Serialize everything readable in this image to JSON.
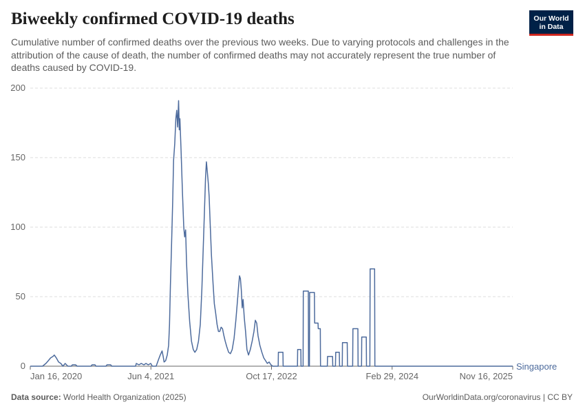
{
  "header": {
    "title": "Biweekly confirmed COVID-19 deaths",
    "subtitle": "Cumulative number of confirmed deaths over the previous two weeks. Due to varying protocols and challenges in the attribution of the cause of death, the number of confirmed deaths may not accurately represent the true number of deaths caused by COVID-19."
  },
  "logo": {
    "line1": "Our World",
    "line2": "in Data"
  },
  "footer": {
    "source_label": "Data source:",
    "source_text": "World Health Organization (2025)",
    "credit": "OurWorldinData.org/coronavirus | CC BY"
  },
  "colors": {
    "series": "#4c6a9c",
    "grid": "#dddddd",
    "axis": "#666666",
    "brand": "#002147",
    "brand_accent": "#ce261e"
  },
  "chart_data": {
    "type": "line",
    "title": "Biweekly confirmed COVID-19 deaths",
    "xlabel": "",
    "ylabel": "",
    "ylim": [
      0,
      200
    ],
    "y_ticks": [
      0,
      50,
      100,
      150,
      200
    ],
    "x_ticks": [
      "Jan 16, 2020",
      "Jun 4, 2021",
      "Oct 17, 2022",
      "Feb 29, 2024",
      "Nov 16, 2025"
    ],
    "x_range": [
      "2020-01-16",
      "2025-11-16"
    ],
    "grid": true,
    "series": [
      {
        "name": "Singapore",
        "points": [
          [
            "2020-01-16",
            0
          ],
          [
            "2020-03-10",
            0
          ],
          [
            "2020-03-25",
            2
          ],
          [
            "2020-04-05",
            4
          ],
          [
            "2020-04-15",
            6
          ],
          [
            "2020-04-25",
            7
          ],
          [
            "2020-05-01",
            8
          ],
          [
            "2020-05-10",
            6
          ],
          [
            "2020-05-20",
            3
          ],
          [
            "2020-05-30",
            2
          ],
          [
            "2020-06-08",
            0
          ],
          [
            "2020-06-18",
            2
          ],
          [
            "2020-06-30",
            0
          ],
          [
            "2020-07-15",
            0
          ],
          [
            "2020-07-20",
            1
          ],
          [
            "2020-08-03",
            1
          ],
          [
            "2020-08-10",
            0
          ],
          [
            "2020-10-10",
            0
          ],
          [
            "2020-10-15",
            1
          ],
          [
            "2020-10-28",
            1
          ],
          [
            "2020-11-01",
            0
          ],
          [
            "2020-12-15",
            0
          ],
          [
            "2020-12-20",
            1
          ],
          [
            "2021-01-05",
            1
          ],
          [
            "2021-01-10",
            0
          ],
          [
            "2021-04-25",
            0
          ],
          [
            "2021-04-28",
            2
          ],
          [
            "2021-05-10",
            1
          ],
          [
            "2021-05-20",
            2
          ],
          [
            "2021-06-01",
            1
          ],
          [
            "2021-06-10",
            2
          ],
          [
            "2021-06-20",
            1
          ],
          [
            "2021-07-01",
            2
          ],
          [
            "2021-07-08",
            0
          ],
          [
            "2021-07-25",
            0
          ],
          [
            "2021-08-05",
            5
          ],
          [
            "2021-08-12",
            8
          ],
          [
            "2021-08-20",
            11
          ],
          [
            "2021-08-25",
            7
          ],
          [
            "2021-08-29",
            3
          ],
          [
            "2021-09-05",
            4
          ],
          [
            "2021-09-12",
            8
          ],
          [
            "2021-09-18",
            15
          ],
          [
            "2021-09-22",
            30
          ],
          [
            "2021-09-26",
            58
          ],
          [
            "2021-10-01",
            88
          ],
          [
            "2021-10-06",
            118
          ],
          [
            "2021-10-10",
            148
          ],
          [
            "2021-10-15",
            160
          ],
          [
            "2021-10-20",
            178
          ],
          [
            "2021-10-24",
            184
          ],
          [
            "2021-10-28",
            172
          ],
          [
            "2021-11-01",
            191
          ],
          [
            "2021-11-04",
            170
          ],
          [
            "2021-11-07",
            178
          ],
          [
            "2021-11-12",
            155
          ],
          [
            "2021-11-18",
            125
          ],
          [
            "2021-11-24",
            100
          ],
          [
            "2021-11-28",
            93
          ],
          [
            "2021-12-02",
            98
          ],
          [
            "2021-12-06",
            75
          ],
          [
            "2021-12-12",
            52
          ],
          [
            "2021-12-20",
            32
          ],
          [
            "2021-12-28",
            18
          ],
          [
            "2022-01-05",
            12
          ],
          [
            "2022-01-12",
            10
          ],
          [
            "2022-01-20",
            12
          ],
          [
            "2022-01-28",
            18
          ],
          [
            "2022-02-05",
            30
          ],
          [
            "2022-02-12",
            55
          ],
          [
            "2022-02-18",
            85
          ],
          [
            "2022-02-24",
            115
          ],
          [
            "2022-02-28",
            135
          ],
          [
            "2022-03-04",
            147
          ],
          [
            "2022-03-08",
            140
          ],
          [
            "2022-03-12",
            132
          ],
          [
            "2022-03-16",
            122
          ],
          [
            "2022-03-20",
            105
          ],
          [
            "2022-03-26",
            80
          ],
          [
            "2022-04-02",
            60
          ],
          [
            "2022-04-08",
            45
          ],
          [
            "2022-04-14",
            38
          ],
          [
            "2022-04-20",
            30
          ],
          [
            "2022-04-26",
            25
          ],
          [
            "2022-05-02",
            25
          ],
          [
            "2022-05-08",
            28
          ],
          [
            "2022-05-14",
            27
          ],
          [
            "2022-05-20",
            22
          ],
          [
            "2022-05-26",
            18
          ],
          [
            "2022-06-02",
            14
          ],
          [
            "2022-06-10",
            10
          ],
          [
            "2022-06-18",
            9
          ],
          [
            "2022-06-26",
            12
          ],
          [
            "2022-07-04",
            20
          ],
          [
            "2022-07-12",
            33
          ],
          [
            "2022-07-18",
            45
          ],
          [
            "2022-07-24",
            57
          ],
          [
            "2022-07-28",
            65
          ],
          [
            "2022-08-01",
            63
          ],
          [
            "2022-08-05",
            55
          ],
          [
            "2022-08-09",
            42
          ],
          [
            "2022-08-13",
            48
          ],
          [
            "2022-08-18",
            35
          ],
          [
            "2022-08-24",
            25
          ],
          [
            "2022-08-30",
            12
          ],
          [
            "2022-09-06",
            8
          ],
          [
            "2022-09-14",
            12
          ],
          [
            "2022-09-22",
            18
          ],
          [
            "2022-09-30",
            25
          ],
          [
            "2022-10-06",
            33
          ],
          [
            "2022-10-12",
            31
          ],
          [
            "2022-10-18",
            22
          ],
          [
            "2022-10-26",
            15
          ],
          [
            "2022-11-04",
            10
          ],
          [
            "2022-11-12",
            6
          ],
          [
            "2022-11-20",
            4
          ],
          [
            "2022-11-28",
            2
          ],
          [
            "2022-12-06",
            3
          ],
          [
            "2022-12-14",
            1
          ],
          [
            "2022-12-22",
            0
          ],
          [
            "2023-01-15",
            0
          ],
          [
            "2023-01-16",
            10
          ],
          [
            "2023-02-05",
            10
          ],
          [
            "2023-02-06",
            0
          ],
          [
            "2023-04-10",
            0
          ],
          [
            "2023-04-11",
            12
          ],
          [
            "2023-04-25",
            12
          ],
          [
            "2023-04-26",
            0
          ],
          [
            "2023-05-05",
            0
          ],
          [
            "2023-05-06",
            54
          ],
          [
            "2023-05-28",
            54
          ],
          [
            "2023-05-29",
            0
          ],
          [
            "2023-06-02",
            0
          ],
          [
            "2023-06-03",
            53
          ],
          [
            "2023-06-24",
            53
          ],
          [
            "2023-06-25",
            31
          ],
          [
            "2023-07-10",
            31
          ],
          [
            "2023-07-11",
            27
          ],
          [
            "2023-07-20",
            27
          ],
          [
            "2023-07-21",
            0
          ],
          [
            "2023-08-20",
            0
          ],
          [
            "2023-08-21",
            7
          ],
          [
            "2023-09-12",
            7
          ],
          [
            "2023-09-13",
            0
          ],
          [
            "2023-09-25",
            0
          ],
          [
            "2023-09-26",
            10
          ],
          [
            "2023-10-12",
            10
          ],
          [
            "2023-10-13",
            0
          ],
          [
            "2023-10-25",
            0
          ],
          [
            "2023-10-26",
            17
          ],
          [
            "2023-11-16",
            17
          ],
          [
            "2023-11-17",
            0
          ],
          [
            "2023-12-10",
            0
          ],
          [
            "2023-12-11",
            27
          ],
          [
            "2024-01-02",
            27
          ],
          [
            "2024-01-03",
            0
          ],
          [
            "2024-01-18",
            0
          ],
          [
            "2024-01-19",
            21
          ],
          [
            "2024-02-08",
            21
          ],
          [
            "2024-02-09",
            0
          ],
          [
            "2024-02-24",
            0
          ],
          [
            "2024-02-25",
            70
          ],
          [
            "2024-03-16",
            70
          ],
          [
            "2024-03-17",
            0
          ],
          [
            "2025-11-16",
            0
          ]
        ]
      }
    ]
  }
}
